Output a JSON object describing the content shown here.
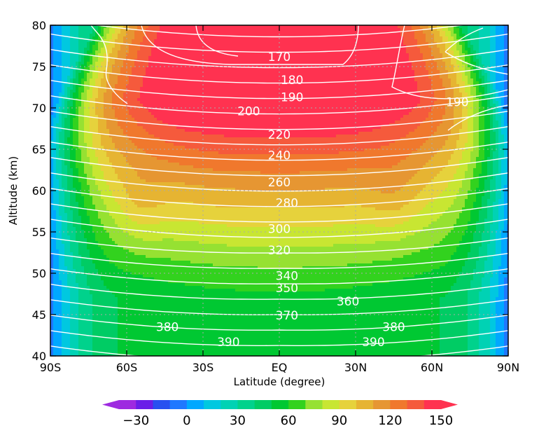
{
  "chart_data": {
    "type": "heatmap",
    "title": "",
    "xlabel": "Latitude (degree)",
    "ylabel": "Altitude (km)",
    "xlim": [
      -90,
      90
    ],
    "ylim": [
      40,
      80
    ],
    "x_ticks": [
      {
        "value": -90,
        "label": "90S"
      },
      {
        "value": -60,
        "label": "60S"
      },
      {
        "value": -30,
        "label": "30S"
      },
      {
        "value": 0,
        "label": "EQ"
      },
      {
        "value": 30,
        "label": "30N"
      },
      {
        "value": 60,
        "label": "60N"
      },
      {
        "value": 90,
        "label": "90N"
      }
    ],
    "y_ticks": [
      {
        "value": 40,
        "label": "40"
      },
      {
        "value": 45,
        "label": "45"
      },
      {
        "value": 50,
        "label": "50"
      },
      {
        "value": 55,
        "label": "55"
      },
      {
        "value": 60,
        "label": "60"
      },
      {
        "value": 65,
        "label": "65"
      },
      {
        "value": 70,
        "label": "70"
      },
      {
        "value": 75,
        "label": "75"
      },
      {
        "value": 80,
        "label": "80"
      }
    ],
    "grid": true,
    "filled_field": {
      "levels": [
        -40,
        -30,
        -20,
        -10,
        0,
        10,
        20,
        30,
        40,
        50,
        60,
        70,
        80,
        90,
        100,
        110,
        120,
        130,
        140,
        150
      ],
      "colors": [
        "#9e2ae0",
        "#6a1ee8",
        "#2850f0",
        "#1f78ff",
        "#00a8ff",
        "#00c8e0",
        "#00d2b4",
        "#00d28c",
        "#00cc64",
        "#00c832",
        "#32d21e",
        "#96e132",
        "#c8e632",
        "#e6d23c",
        "#e6b432",
        "#e69632",
        "#f0782d",
        "#f55a3c",
        "#ff3250"
      ],
      "extend": "both"
    },
    "colorbar": {
      "orientation": "horizontal",
      "tick_labels": [
        {
          "value": -30,
          "label": "−30"
        },
        {
          "value": 0,
          "label": "0"
        },
        {
          "value": 30,
          "label": "30"
        },
        {
          "value": 60,
          "label": "60"
        },
        {
          "value": 90,
          "label": "90"
        },
        {
          "value": 120,
          "label": "120"
        },
        {
          "value": 150,
          "label": "150"
        }
      ]
    },
    "contour_lines": {
      "levels": [
        170,
        180,
        190,
        200,
        210,
        220,
        230,
        240,
        250,
        260,
        270,
        280,
        290,
        300,
        310,
        320,
        330,
        340,
        350,
        360,
        370,
        380,
        390,
        400
      ],
      "labels": [
        {
          "text": "170",
          "lat": 0,
          "alt": 76.2
        },
        {
          "text": "180",
          "lat": 5,
          "alt": 73.4
        },
        {
          "text": "190",
          "lat": 5,
          "alt": 71.3
        },
        {
          "text": "190",
          "lat": 70,
          "alt": 70.7
        },
        {
          "text": "200",
          "lat": -12,
          "alt": 69.6
        },
        {
          "text": "220",
          "lat": 0,
          "alt": 66.8
        },
        {
          "text": "240",
          "lat": 0,
          "alt": 64.3
        },
        {
          "text": "260",
          "lat": 0,
          "alt": 61.0
        },
        {
          "text": "280",
          "lat": 3,
          "alt": 58.5
        },
        {
          "text": "300",
          "lat": 0,
          "alt": 55.4
        },
        {
          "text": "320",
          "lat": 0,
          "alt": 52.8
        },
        {
          "text": "340",
          "lat": 3,
          "alt": 49.7
        },
        {
          "text": "350",
          "lat": 3,
          "alt": 48.2
        },
        {
          "text": "360",
          "lat": 27,
          "alt": 46.6
        },
        {
          "text": "370",
          "lat": 3,
          "alt": 44.9
        },
        {
          "text": "380",
          "lat": -44,
          "alt": 43.5
        },
        {
          "text": "380",
          "lat": 45,
          "alt": 43.5
        },
        {
          "text": "390",
          "lat": -20,
          "alt": 41.7
        },
        {
          "text": "390",
          "lat": 37,
          "alt": 41.7
        }
      ]
    }
  }
}
